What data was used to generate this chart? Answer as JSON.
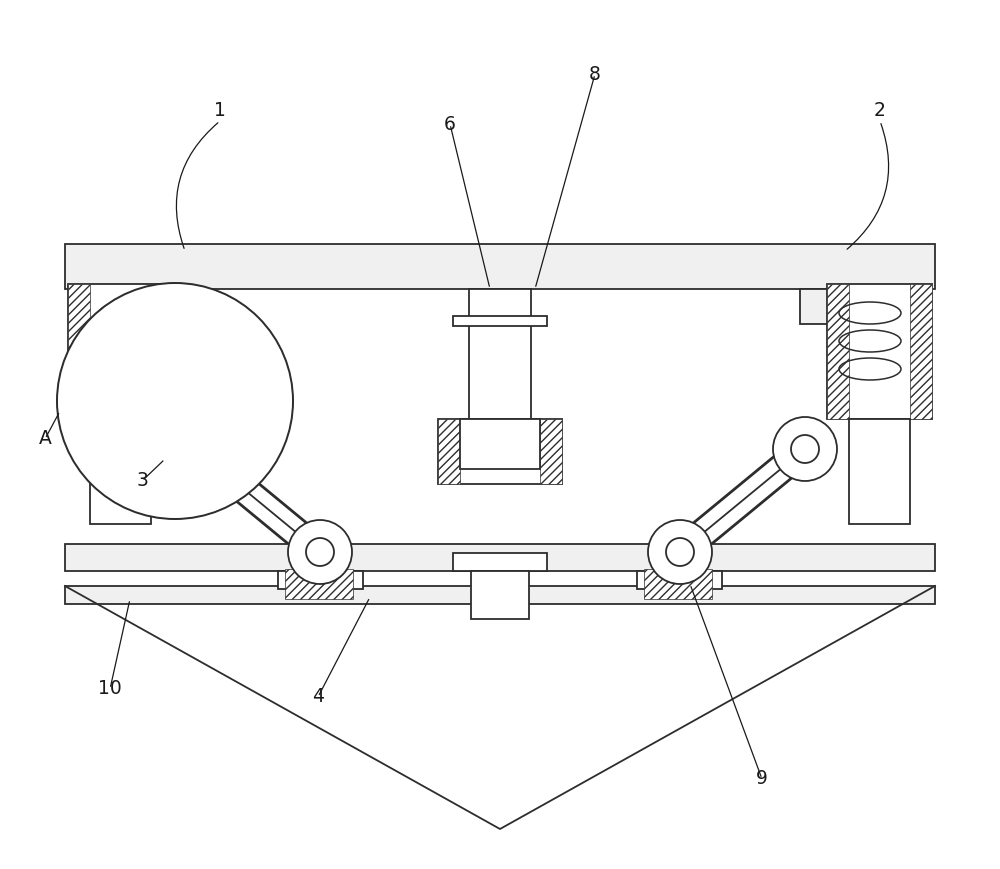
{
  "bg": "#ffffff",
  "lc": "#2d2d2d",
  "lw": 1.3,
  "fig_w": 10.0,
  "fig_h": 8.69,
  "dpi": 100,
  "label_fs": 13.5
}
